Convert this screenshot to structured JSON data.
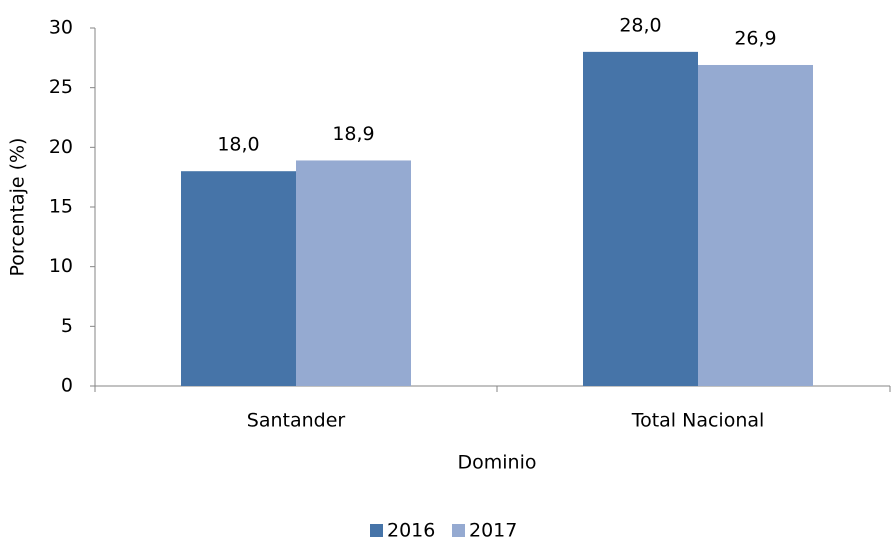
{
  "chart_data": {
    "type": "bar",
    "x_label": "Dominio",
    "y_label": "Porcentaje (%)",
    "categories": [
      "Santander",
      "Total Nacional"
    ],
    "series": [
      {
        "name": "2016",
        "color": "#4674a8",
        "values": [
          18.0,
          28.0
        ],
        "value_labels": [
          "18,0",
          "28,0"
        ]
      },
      {
        "name": "2017",
        "color": "#95aad1",
        "values": [
          18.9,
          26.9
        ],
        "value_labels": [
          "18,9",
          "26,9"
        ]
      }
    ],
    "ylim": [
      0,
      30
    ],
    "yticks": [
      0,
      5,
      10,
      15,
      20,
      25,
      30
    ],
    "grid": false,
    "legend": "bottom"
  }
}
